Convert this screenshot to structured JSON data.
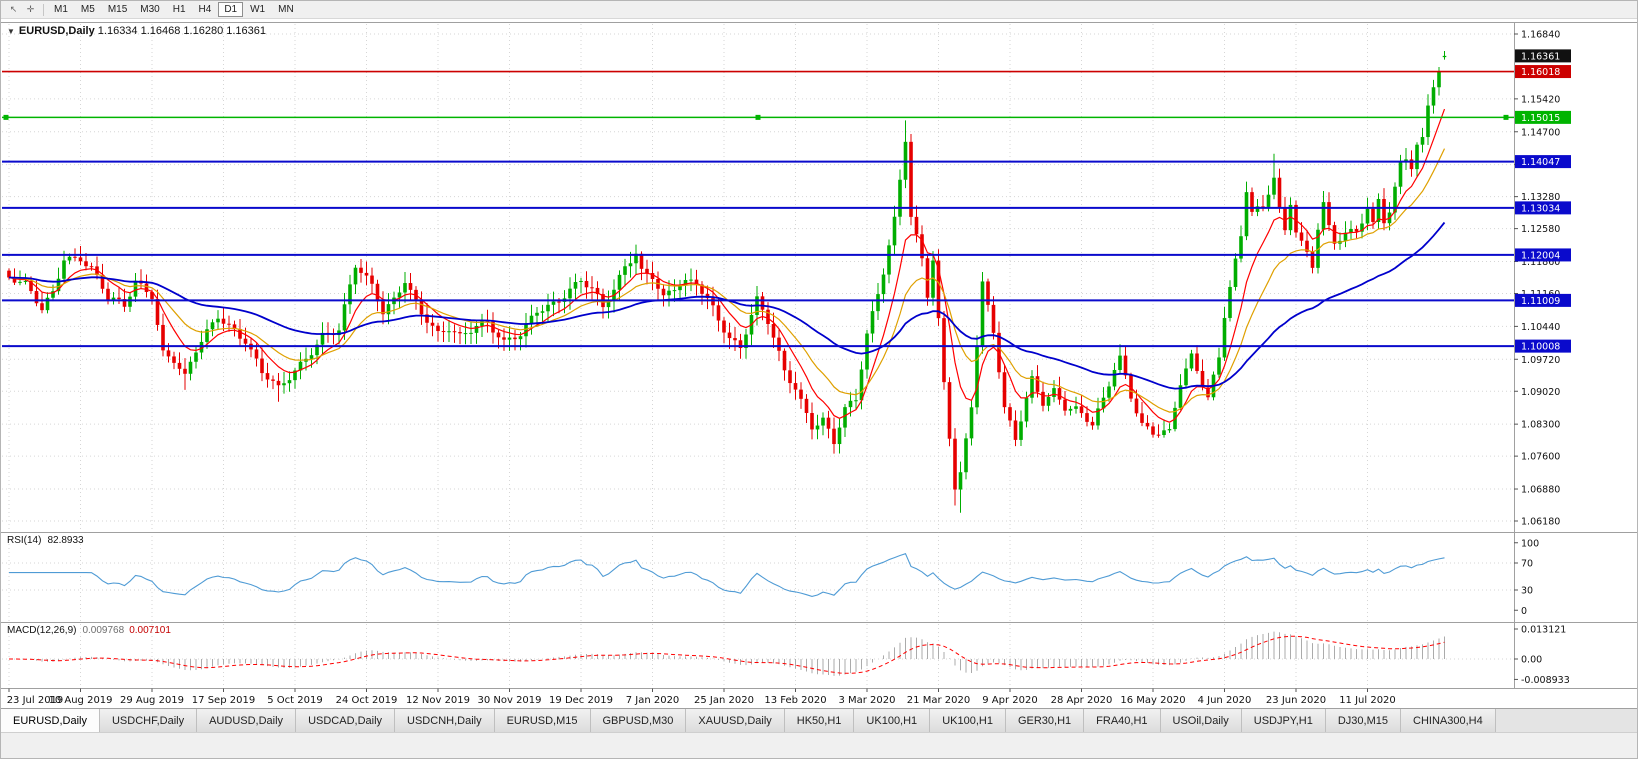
{
  "toolbar": {
    "tool_icons": [
      {
        "name": "cursor-icon",
        "glyph": "↖"
      },
      {
        "name": "crosshair-icon",
        "glyph": "✛"
      }
    ],
    "timeframes": [
      "M1",
      "M5",
      "M15",
      "M30",
      "H1",
      "H4",
      "D1",
      "W1",
      "MN"
    ],
    "active_timeframe": "D1"
  },
  "chart": {
    "title": {
      "collapse_glyph": "▼",
      "symbol": "EURUSD,Daily",
      "ohlc": "1.16334 1.16468 1.16280 1.16361"
    },
    "colors": {
      "bull": "#00ad00",
      "bear": "#e60000",
      "ma_fast": "#ff0000",
      "ma_mid": "#dfa000",
      "ma_slow": "#0000cc",
      "grid": "#d6d6d6",
      "rsi_line": "#4f9bd5",
      "macd_hist": "#ababab",
      "macd_signal": "#ff0000"
    },
    "price_scale": {
      "min": 1.0618,
      "max": 1.1684,
      "ticks": [
        "1.16840",
        "1.15420",
        "1.14700",
        "1.13980",
        "1.13280",
        "1.12580",
        "1.11860",
        "1.11160",
        "1.10440",
        "1.09720",
        "1.09020",
        "1.08300",
        "1.07600",
        "1.06880",
        "1.06180"
      ]
    },
    "badges": [
      {
        "text": "1.16361",
        "value": 1.16361,
        "color": "#111111"
      },
      {
        "text": "1.16018",
        "value": 1.16018,
        "color": "#cc0000"
      },
      {
        "text": "1.15015",
        "value": 1.15015,
        "color": "#00b400"
      },
      {
        "text": "1.14047",
        "value": 1.14047,
        "color": "#0a0acc"
      },
      {
        "text": "1.13034",
        "value": 1.13034,
        "color": "#0a0acc"
      },
      {
        "text": "1.12004",
        "value": 1.12004,
        "color": "#0a0acc"
      },
      {
        "text": "1.11009",
        "value": 1.11009,
        "color": "#0a0acc"
      },
      {
        "text": "1.10008",
        "value": 1.10008,
        "color": "#0a0acc"
      }
    ],
    "levels": [
      {
        "value": 1.16018,
        "color": "#cc0000",
        "width": 1.6,
        "selected": false
      },
      {
        "value": 1.15015,
        "color": "#00b400",
        "width": 1.6,
        "selected": true
      },
      {
        "value": 1.14047,
        "color": "#0a0acc",
        "width": 2,
        "selected": false
      },
      {
        "value": 1.13034,
        "color": "#0a0acc",
        "width": 2,
        "selected": false
      },
      {
        "value": 1.12004,
        "color": "#0a0acc",
        "width": 2,
        "selected": false
      },
      {
        "value": 1.11009,
        "color": "#0a0acc",
        "width": 2,
        "selected": false
      },
      {
        "value": 1.10008,
        "color": "#0a0acc",
        "width": 2,
        "selected": false
      }
    ],
    "x_axis": [
      "23 Jul 2019",
      "10 Aug 2019",
      "29 Aug 2019",
      "17 Sep 2019",
      "5 Oct 2019",
      "24 Oct 2019",
      "12 Nov 2019",
      "30 Nov 2019",
      "19 Dec 2019",
      "7 Jan 2020",
      "25 Jan 2020",
      "13 Feb 2020",
      "3 Mar 2020",
      "21 Mar 2020",
      "9 Apr 2020",
      "28 Apr 2020",
      "16 May 2020",
      "4 Jun 2020",
      "23 Jun 2020",
      "11 Jul 2020"
    ],
    "chart_data": {
      "type": "candlestick",
      "symbol": "EURUSD",
      "period": "Daily",
      "n": 262,
      "ylim": [
        1.0618,
        1.1684
      ],
      "close_path": [
        [
          0,
          1.1151
        ],
        [
          3,
          1.1128
        ],
        [
          6,
          1.1077
        ],
        [
          8,
          1.112
        ],
        [
          10,
          1.12
        ],
        [
          13,
          1.1198
        ],
        [
          15,
          1.117
        ],
        [
          18,
          1.11
        ],
        [
          21,
          1.1085
        ],
        [
          23,
          1.1145
        ],
        [
          26,
          1.112
        ],
        [
          28,
          1.099
        ],
        [
          30,
          1.097
        ],
        [
          32,
          1.0926
        ],
        [
          34,
          1.0985
        ],
        [
          38,
          1.107
        ],
        [
          41,
          1.1042
        ],
        [
          43,
          1.1017
        ],
        [
          46,
          1.094
        ],
        [
          49,
          1.09
        ],
        [
          51,
          1.093
        ],
        [
          54,
          1.098
        ],
        [
          57,
          1.103
        ],
        [
          60,
          1.1035
        ],
        [
          63,
          1.117
        ],
        [
          66,
          1.113
        ],
        [
          68,
          1.108
        ],
        [
          70,
          1.111
        ],
        [
          72,
          1.1152
        ],
        [
          75,
          1.107
        ],
        [
          78,
          1.1018
        ],
        [
          80,
          1.1035
        ],
        [
          82,
          1.1023
        ],
        [
          85,
          1.1055
        ],
        [
          87,
          1.1059
        ],
        [
          90,
          1.1005
        ],
        [
          93,
          1.1018
        ],
        [
          96,
          1.1077
        ],
        [
          99,
          1.11
        ],
        [
          102,
          1.113
        ],
        [
          104,
          1.1145
        ],
        [
          106,
          1.112
        ],
        [
          108,
          1.1078
        ],
        [
          110,
          1.112
        ],
        [
          112,
          1.1177
        ],
        [
          114,
          1.1213
        ],
        [
          115,
          1.1172
        ],
        [
          117,
          1.116
        ],
        [
          119,
          1.1105
        ],
        [
          122,
          1.113
        ],
        [
          125,
          1.1136
        ],
        [
          128,
          1.109
        ],
        [
          131,
          1.1024
        ],
        [
          133,
          1.1
        ],
        [
          136,
          1.1095
        ],
        [
          138,
          1.1048
        ],
        [
          141,
          1.0946
        ],
        [
          143,
          1.0915
        ],
        [
          146,
          1.0832
        ],
        [
          148,
          1.084
        ],
        [
          150,
          1.0786
        ],
        [
          152,
          1.0854
        ],
        [
          154,
          1.088
        ],
        [
          156,
          1.1026
        ],
        [
          159,
          1.1173
        ],
        [
          161,
          1.1284
        ],
        [
          163,
          1.1456
        ],
        [
          164,
          1.1281
        ],
        [
          166,
          1.1184
        ],
        [
          167,
          1.1105
        ],
        [
          168,
          1.1182
        ],
        [
          170,
          1.0917
        ],
        [
          172,
          1.0695
        ],
        [
          173,
          1.0726
        ],
        [
          175,
          1.0881
        ],
        [
          177,
          1.1141
        ],
        [
          179,
          1.1031
        ],
        [
          181,
          1.0855
        ],
        [
          183,
          1.0791
        ],
        [
          186,
          1.093
        ],
        [
          188,
          1.0885
        ],
        [
          190,
          1.091
        ],
        [
          192,
          1.087
        ],
        [
          194,
          1.0858
        ],
        [
          197,
          1.0821
        ],
        [
          199,
          1.088
        ],
        [
          201,
          1.0955
        ],
        [
          202,
          1.098
        ],
        [
          204,
          1.09
        ],
        [
          206,
          1.0834
        ],
        [
          208,
          1.081
        ],
        [
          211,
          1.0804
        ],
        [
          213,
          1.0915
        ],
        [
          215,
          1.0977
        ],
        [
          218,
          1.0897
        ],
        [
          220,
          1.0983
        ],
        [
          221,
          1.1075
        ],
        [
          222,
          1.1134
        ],
        [
          224,
          1.1234
        ],
        [
          225,
          1.1337
        ],
        [
          226,
          1.1289
        ],
        [
          228,
          1.1295
        ],
        [
          230,
          1.1374
        ],
        [
          231,
          1.1301
        ],
        [
          232,
          1.1256
        ],
        [
          233,
          1.1323
        ],
        [
          234,
          1.1264
        ],
        [
          236,
          1.1206
        ],
        [
          237,
          1.1177
        ],
        [
          238,
          1.126
        ],
        [
          239,
          1.1308
        ],
        [
          240,
          1.1251
        ],
        [
          241,
          1.1218
        ],
        [
          243,
          1.1242
        ],
        [
          245,
          1.1252
        ],
        [
          247,
          1.1309
        ],
        [
          248,
          1.1274
        ],
        [
          249,
          1.133
        ],
        [
          250,
          1.1284
        ],
        [
          251,
          1.13
        ],
        [
          252,
          1.1344
        ],
        [
          253,
          1.1397
        ],
        [
          254,
          1.141
        ],
        [
          255,
          1.1384
        ],
        [
          256,
          1.1427
        ],
        [
          257,
          1.1446
        ],
        [
          258,
          1.1527
        ],
        [
          259,
          1.157
        ],
        [
          260,
          1.1598
        ],
        [
          261,
          1.16361
        ]
      ],
      "wick_overrides": {
        "32": {
          "low": 1.0905
        },
        "49": {
          "low": 1.0879
        },
        "163": {
          "high": 1.1495
        },
        "172": {
          "low": 1.0652
        },
        "173": {
          "low": 1.0636
        },
        "230": {
          "high": 1.1422
        }
      },
      "last_candle": {
        "open": 1.16334,
        "high": 1.16468,
        "low": 1.1628,
        "close": 1.16361
      },
      "moving_averages": [
        {
          "period": 8,
          "color_key": "ma_fast",
          "width": 1.2
        },
        {
          "period": 17,
          "color_key": "ma_mid",
          "width": 1.2
        },
        {
          "period": 50,
          "color_key": "ma_slow",
          "width": 1.8
        }
      ]
    }
  },
  "rsi": {
    "label": "RSI(14)",
    "value": "82.8933",
    "scale": [
      "100",
      "70",
      "30",
      "0"
    ],
    "levels": [
      70,
      30
    ]
  },
  "macd": {
    "label": "MACD(12,26,9)",
    "value_main": "0.009768",
    "value_signal": "0.007101",
    "scale_top": "0.013121",
    "scale_zero": "0.00",
    "scale_bottom": "-0.008933"
  },
  "tabs": {
    "active_index": 0,
    "items": [
      "EURUSD,Daily",
      "USDCHF,Daily",
      "AUDUSD,Daily",
      "USDCAD,Daily",
      "USDCNH,Daily",
      "EURUSD,M15",
      "GBPUSD,M30",
      "XAUUSD,Daily",
      "HK50,H1",
      "UK100,H1",
      "UK100,H1",
      "GER30,H1",
      "FRA40,H1",
      "USOil,Daily",
      "USDJPY,H1",
      "DJ30,M15",
      "CHINA300,H4"
    ]
  }
}
